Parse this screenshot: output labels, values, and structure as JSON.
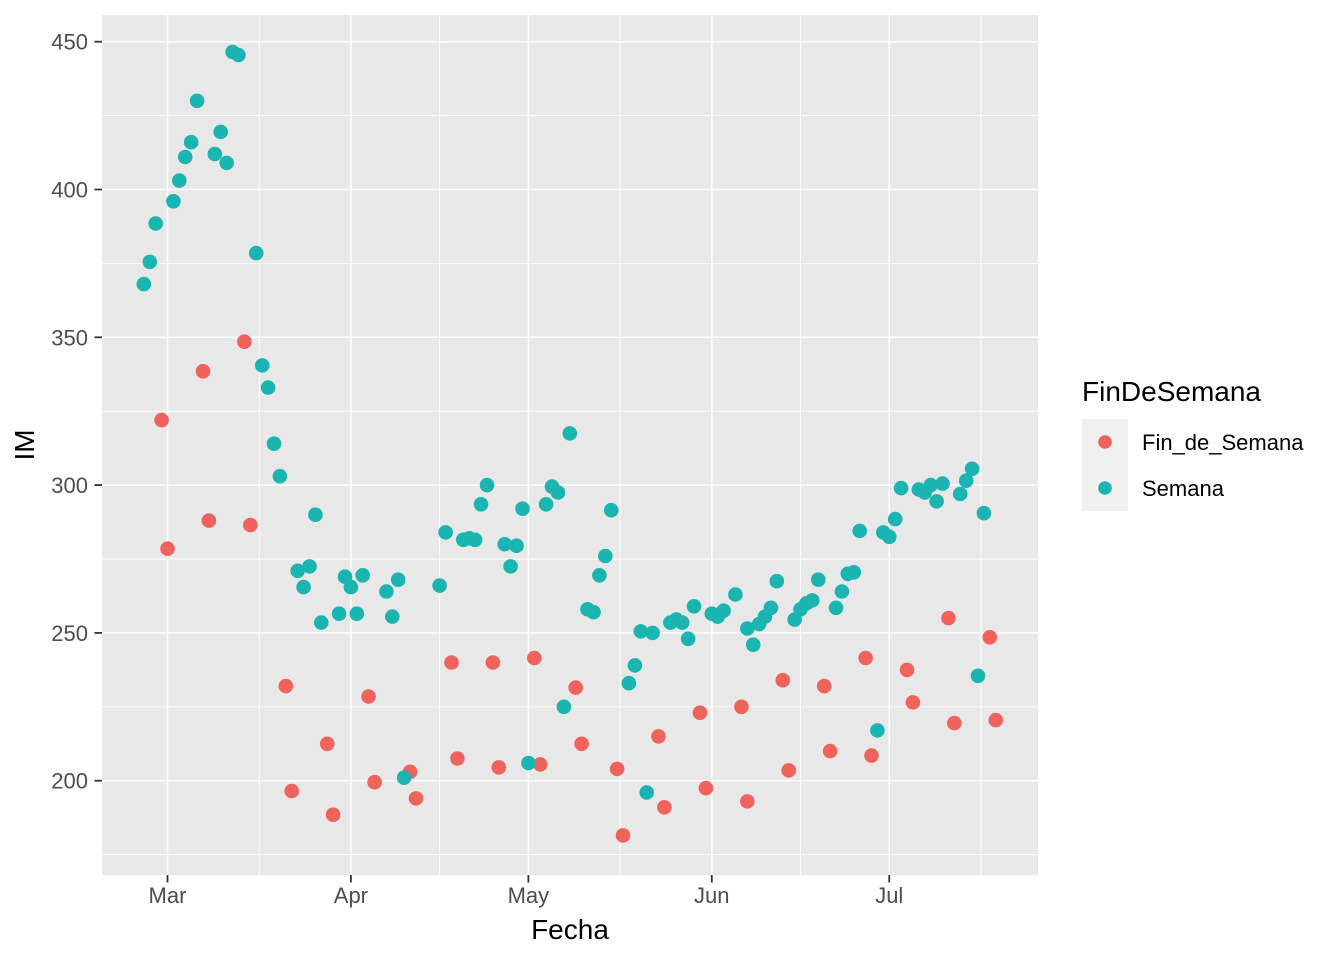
{
  "chart_data": {
    "type": "scatter",
    "title": "",
    "xlabel": "Fecha",
    "ylabel": "IM",
    "x_unit": "days_since_Mar_1",
    "x_ticks": [
      {
        "label": "Mar",
        "d": 0
      },
      {
        "label": "Apr",
        "d": 31
      },
      {
        "label": "May",
        "d": 61
      },
      {
        "label": "Jun",
        "d": 92
      },
      {
        "label": "Jul",
        "d": 122
      }
    ],
    "y_ticks": [
      200,
      250,
      300,
      350,
      400,
      450
    ],
    "xlim_days": [
      -11,
      147
    ],
    "ylim": [
      168,
      459
    ],
    "grid": "major+minor",
    "legend_position": "right",
    "legend": {
      "title": "FinDeSemana",
      "entries": [
        {
          "label": "Fin_de_Semana",
          "color": "#F0625C"
        },
        {
          "label": "Semana",
          "color": "#1BB5B1"
        }
      ]
    },
    "theme": {
      "panel_bg": "#E8E8E8",
      "grid_color": "#FFFFFF",
      "tick_label_color": "#4D4D4D",
      "axis_title_color": "#000000",
      "legend_key_bg": "#F0F0F0",
      "tick_mark_color": "#333333"
    },
    "series": [
      {
        "name": "Fin_de_Semana",
        "color": "#F0625C",
        "points": [
          [
            -1,
            322
          ],
          [
            0,
            278.5
          ],
          [
            6,
            338.5
          ],
          [
            7,
            288
          ],
          [
            13,
            348.5
          ],
          [
            14,
            286.5
          ],
          [
            20,
            232
          ],
          [
            21,
            196.5
          ],
          [
            27,
            212.5
          ],
          [
            28,
            188.5
          ],
          [
            34,
            228.5
          ],
          [
            35,
            199.5
          ],
          [
            41,
            203
          ],
          [
            42,
            194
          ],
          [
            48,
            240
          ],
          [
            49,
            207.5
          ],
          [
            55,
            240
          ],
          [
            56,
            204.5
          ],
          [
            62,
            241.5
          ],
          [
            63,
            205.5
          ],
          [
            69,
            231.5
          ],
          [
            70,
            212.5
          ],
          [
            76,
            204
          ],
          [
            77,
            181.5
          ],
          [
            83,
            215
          ],
          [
            84,
            191
          ],
          [
            90,
            223
          ],
          [
            91,
            197.5
          ],
          [
            97,
            225
          ],
          [
            98,
            193
          ],
          [
            104,
            234
          ],
          [
            105,
            203.5
          ],
          [
            111,
            232
          ],
          [
            112,
            210
          ],
          [
            118,
            241.5
          ],
          [
            119,
            208.5
          ],
          [
            125,
            237.5
          ],
          [
            126,
            226.5
          ],
          [
            132,
            255
          ],
          [
            133,
            219.5
          ],
          [
            139,
            248.5
          ],
          [
            140,
            220.5
          ]
        ]
      },
      {
        "name": "Semana",
        "color": "#1BB5B1",
        "points": [
          [
            -4,
            368
          ],
          [
            -3,
            375.5
          ],
          [
            -2,
            388.5
          ],
          [
            1,
            396
          ],
          [
            2,
            403
          ],
          [
            3,
            411
          ],
          [
            4,
            416
          ],
          [
            5,
            430
          ],
          [
            8,
            412
          ],
          [
            9,
            419.5
          ],
          [
            10,
            409
          ],
          [
            11,
            446.5
          ],
          [
            12,
            445.5
          ],
          [
            15,
            378.5
          ],
          [
            16,
            340.5
          ],
          [
            17,
            333
          ],
          [
            18,
            314
          ],
          [
            19,
            303
          ],
          [
            22,
            271
          ],
          [
            23,
            265.5
          ],
          [
            24,
            272.5
          ],
          [
            25,
            290
          ],
          [
            26,
            253.5
          ],
          [
            29,
            256.5
          ],
          [
            30,
            269
          ],
          [
            31,
            265.5
          ],
          [
            32,
            256.5
          ],
          [
            33,
            269.5
          ],
          [
            37,
            264
          ],
          [
            38,
            255.5
          ],
          [
            39,
            268
          ],
          [
            40,
            201
          ],
          [
            46,
            266
          ],
          [
            47,
            284
          ],
          [
            50,
            281.5
          ],
          [
            51,
            282
          ],
          [
            52,
            281.5
          ],
          [
            53,
            293.5
          ],
          [
            54,
            300
          ],
          [
            57,
            280
          ],
          [
            58,
            272.5
          ],
          [
            59,
            279.5
          ],
          [
            60,
            292
          ],
          [
            61,
            206
          ],
          [
            64,
            293.5
          ],
          [
            65,
            299.5
          ],
          [
            66,
            297.5
          ],
          [
            67,
            225
          ],
          [
            68,
            317.5
          ],
          [
            71,
            258
          ],
          [
            72,
            257
          ],
          [
            73,
            269.5
          ],
          [
            74,
            276
          ],
          [
            75,
            291.5
          ],
          [
            78,
            233
          ],
          [
            79,
            239
          ],
          [
            80,
            250.5
          ],
          [
            81,
            196
          ],
          [
            82,
            250
          ],
          [
            85,
            253.5
          ],
          [
            86,
            254.5
          ],
          [
            87,
            253.5
          ],
          [
            88,
            248
          ],
          [
            89,
            259
          ],
          [
            92,
            256.5
          ],
          [
            93,
            255.5
          ],
          [
            94,
            257.5
          ],
          [
            96,
            263
          ],
          [
            98,
            251.5
          ],
          [
            99,
            246
          ],
          [
            100,
            253
          ],
          [
            101,
            255.5
          ],
          [
            102,
            258.5
          ],
          [
            103,
            267.5
          ],
          [
            106,
            254.5
          ],
          [
            107,
            258
          ],
          [
            108,
            260
          ],
          [
            109,
            261
          ],
          [
            110,
            268
          ],
          [
            113,
            258.5
          ],
          [
            114,
            264
          ],
          [
            115,
            270
          ],
          [
            116,
            270.5
          ],
          [
            117,
            284.5
          ],
          [
            120,
            217
          ],
          [
            121,
            284
          ],
          [
            122,
            282.5
          ],
          [
            123,
            288.5
          ],
          [
            124,
            299
          ],
          [
            127,
            298.5
          ],
          [
            128,
            297.5
          ],
          [
            129,
            300
          ],
          [
            130,
            294.5
          ],
          [
            131,
            300.5
          ],
          [
            134,
            297
          ],
          [
            135,
            301.5
          ],
          [
            136,
            305.5
          ],
          [
            137,
            235.5
          ],
          [
            138,
            290.5
          ]
        ]
      }
    ]
  }
}
